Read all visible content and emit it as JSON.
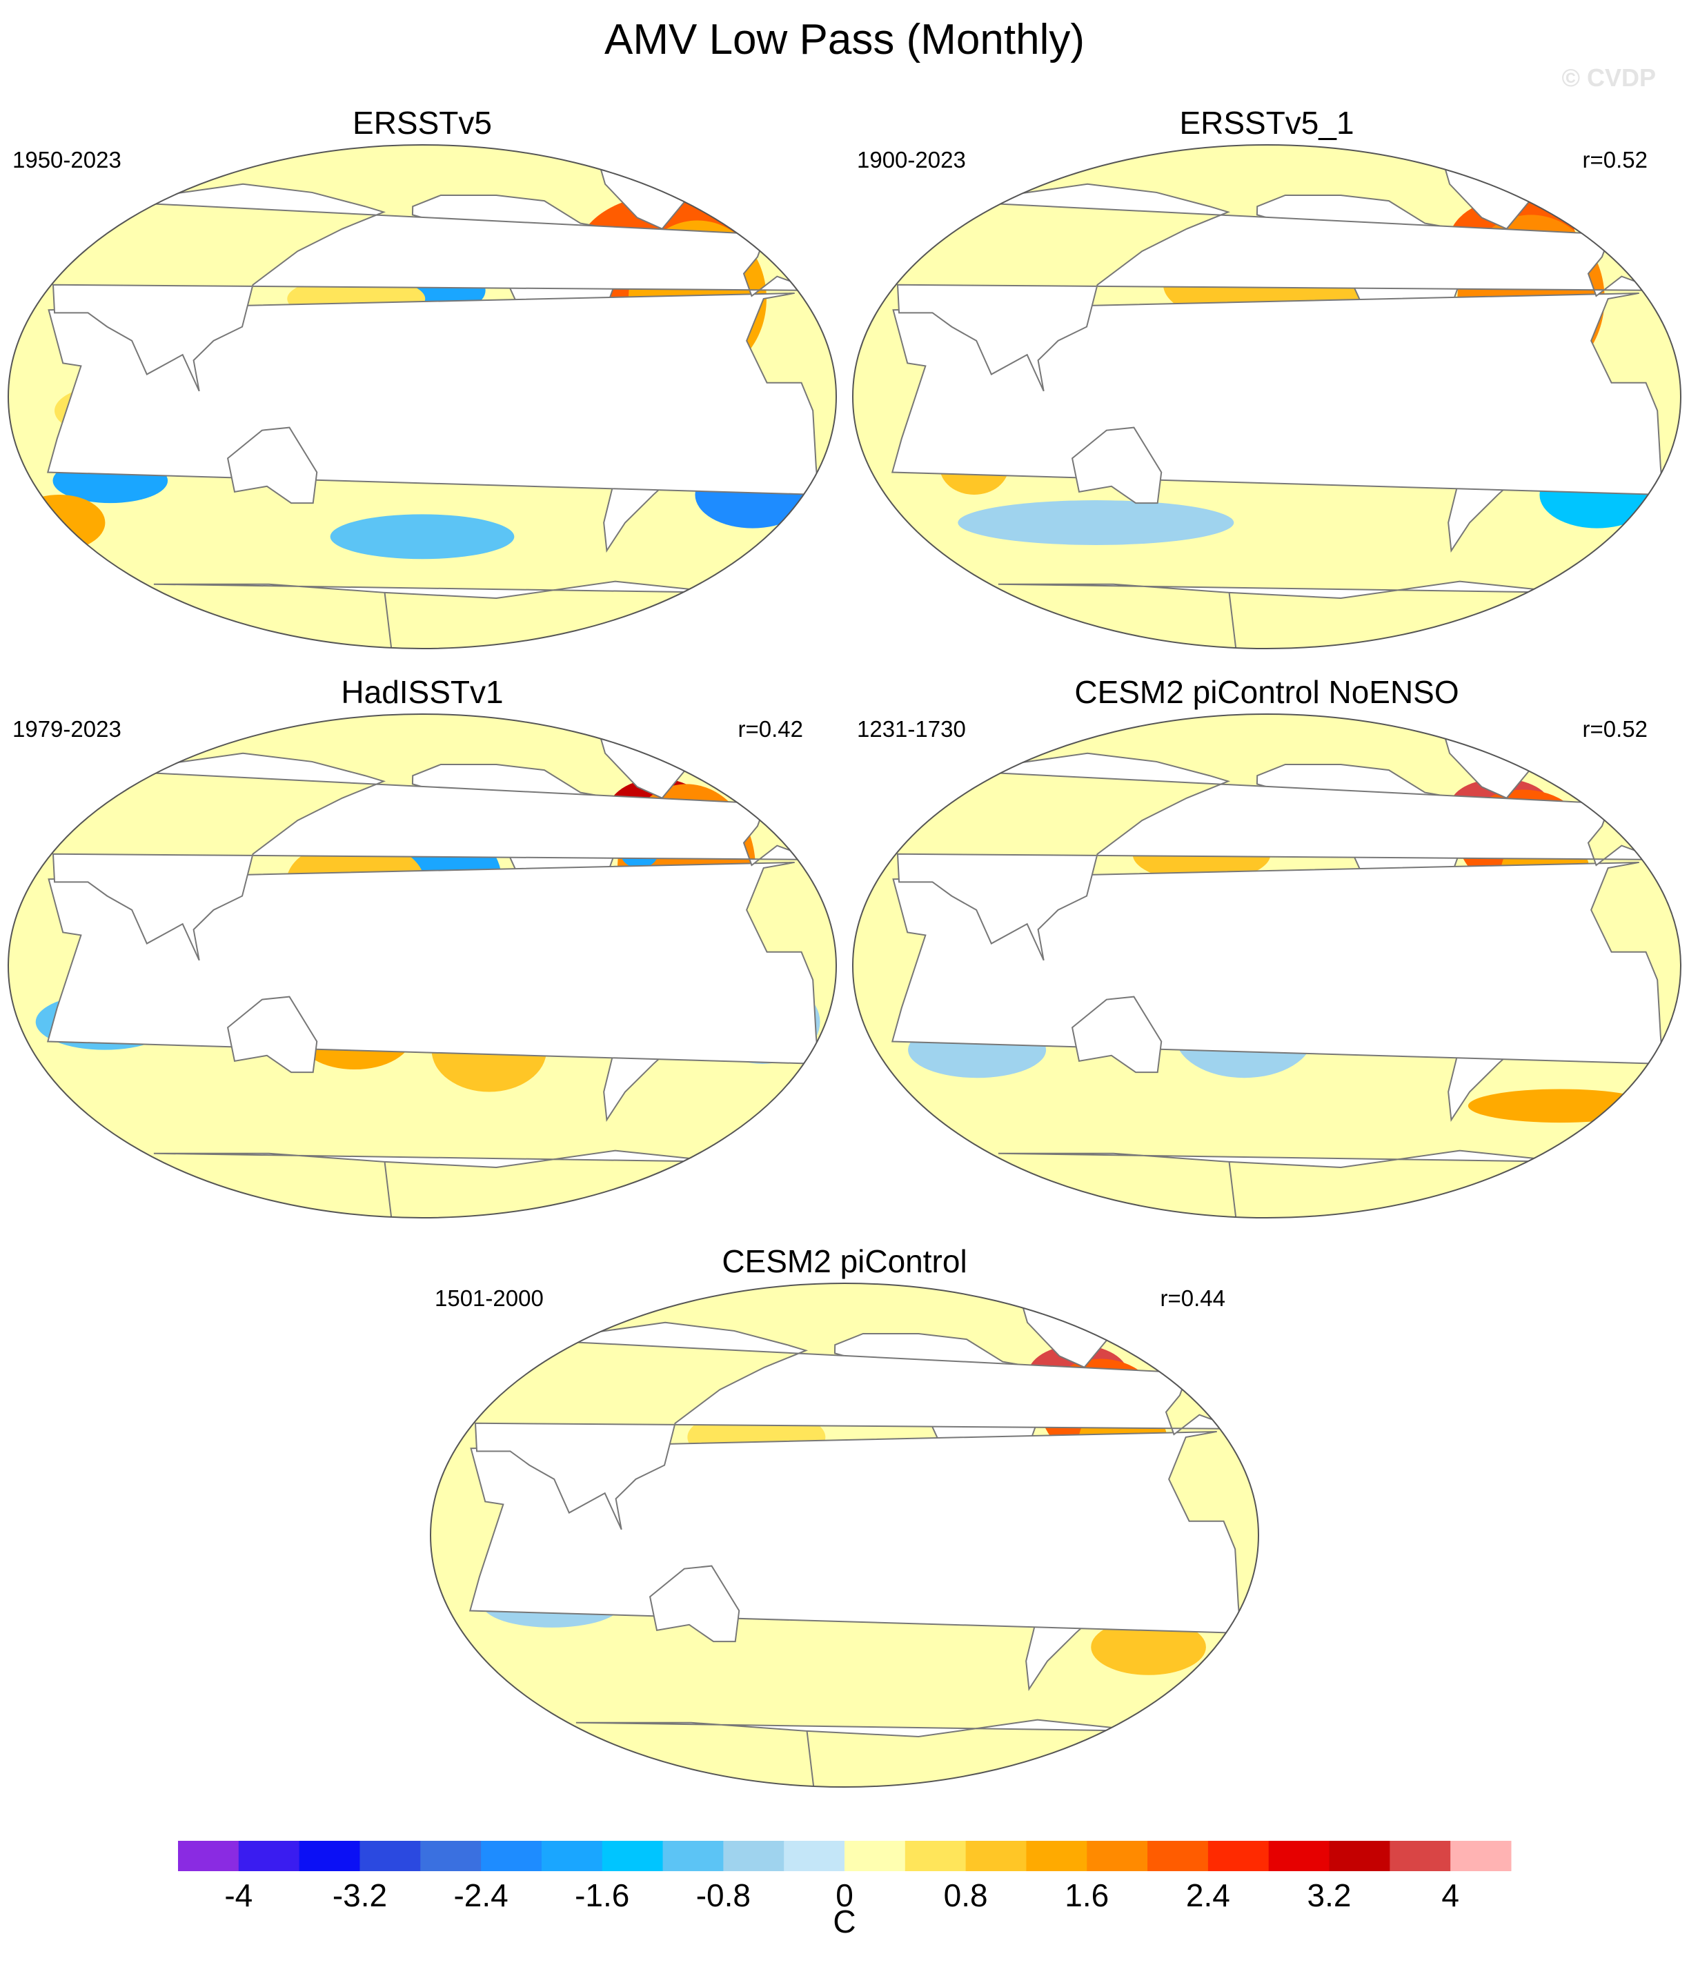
{
  "title": "AMV Low Pass (Monthly)",
  "watermark": "© CVDP",
  "units": "C",
  "colorbar": {
    "levels": [
      -4.4,
      -4,
      -3.6,
      -3.2,
      -2.8,
      -2.4,
      -2,
      -1.6,
      -1.2,
      -0.8,
      -0.4,
      0,
      0.4,
      0.8,
      1.2,
      1.6,
      2,
      2.4,
      2.8,
      3.2,
      3.6,
      4,
      4.4
    ],
    "colors": [
      "#8a2be2",
      "#3a1cf0",
      "#0b10f5",
      "#2b49e0",
      "#3a70e0",
      "#1e8cff",
      "#1aa6ff",
      "#00c5ff",
      "#5cc4f5",
      "#9fd3ee",
      "#c4e6f8",
      "#ffffb0",
      "#ffe55a",
      "#ffc626",
      "#ffaa00",
      "#ff8a00",
      "#ff5c00",
      "#ff2a00",
      "#e60000",
      "#c40000",
      "#d94545",
      "#ffb3b3"
    ],
    "tick_labels": [
      "-4",
      "-3.2",
      "-2.4",
      "-1.6",
      "-0.8",
      "0",
      "0.8",
      "1.6",
      "2.4",
      "3.2",
      "4"
    ]
  },
  "panels": [
    {
      "title": "ERSSTv5",
      "period": "1950-2023",
      "corr": "",
      "anomalies": [
        {
          "lon": -40,
          "lat": 55,
          "rx": 28,
          "ry": 15,
          "value": 3.2
        },
        {
          "lon": -45,
          "lat": 50,
          "rx": 38,
          "ry": 22,
          "value": 2.2
        },
        {
          "lon": -35,
          "lat": 35,
          "rx": 30,
          "ry": 28,
          "value": 1.4
        },
        {
          "lon": -170,
          "lat": 40,
          "rx": 35,
          "ry": 12,
          "value": -1.2
        },
        {
          "lon": -150,
          "lat": 38,
          "rx": 18,
          "ry": 8,
          "value": -2.0
        },
        {
          "lon": 170,
          "lat": 35,
          "rx": 30,
          "ry": 8,
          "value": 0.6
        },
        {
          "lon": -130,
          "lat": 0,
          "rx": 40,
          "ry": 8,
          "value": 1.2
        },
        {
          "lon": -115,
          "lat": 2,
          "rx": 15,
          "ry": 5,
          "value": 1.8
        },
        {
          "lon": 70,
          "lat": -5,
          "rx": 30,
          "ry": 10,
          "value": 0.6
        },
        {
          "lon": 60,
          "lat": -30,
          "rx": 25,
          "ry": 8,
          "value": -1.8
        },
        {
          "lon": 30,
          "lat": -45,
          "rx": 20,
          "ry": 10,
          "value": 1.2
        },
        {
          "lon": -10,
          "lat": -35,
          "rx": 25,
          "ry": 12,
          "value": -2.4
        },
        {
          "lon": -20,
          "lat": -10,
          "rx": 25,
          "ry": 8,
          "value": -1.2
        },
        {
          "lon": -160,
          "lat": -50,
          "rx": 40,
          "ry": 8,
          "value": -1.2
        }
      ]
    },
    {
      "title": "ERSSTv5_1",
      "period": "1900-2023",
      "corr": "r=0.52",
      "anomalies": [
        {
          "lon": -40,
          "lat": 55,
          "rx": 28,
          "ry": 16,
          "value": 2.2
        },
        {
          "lon": -40,
          "lat": 35,
          "rx": 32,
          "ry": 30,
          "value": 1.6
        },
        {
          "lon": -160,
          "lat": 40,
          "rx": 45,
          "ry": 15,
          "value": 1.0
        },
        {
          "lon": -150,
          "lat": 5,
          "rx": 40,
          "ry": 6,
          "value": -0.6
        },
        {
          "lon": -10,
          "lat": -35,
          "rx": 25,
          "ry": 12,
          "value": -1.4
        },
        {
          "lon": 120,
          "lat": -45,
          "rx": 60,
          "ry": 8,
          "value": -0.6
        },
        {
          "lon": 70,
          "lat": -25,
          "rx": 15,
          "ry": 10,
          "value": 0.8
        }
      ]
    },
    {
      "title": "HadISSTv1",
      "period": "1979-2023",
      "corr": "r=0.42",
      "anomalies": [
        {
          "lon": -45,
          "lat": 55,
          "rx": 22,
          "ry": 12,
          "value": 3.2
        },
        {
          "lon": -40,
          "lat": 35,
          "rx": 30,
          "ry": 30,
          "value": 1.8
        },
        {
          "lon": -60,
          "lat": 40,
          "rx": 8,
          "ry": 5,
          "value": -1.8
        },
        {
          "lon": -150,
          "lat": 30,
          "rx": 25,
          "ry": 20,
          "value": -2.0
        },
        {
          "lon": -130,
          "lat": 10,
          "rx": 35,
          "ry": 10,
          "value": -1.6
        },
        {
          "lon": 170,
          "lat": 30,
          "rx": 30,
          "ry": 15,
          "value": 1.0
        },
        {
          "lon": 170,
          "lat": -25,
          "rx": 25,
          "ry": 12,
          "value": 1.4
        },
        {
          "lon": -130,
          "lat": -30,
          "rx": 25,
          "ry": 15,
          "value": 1.0
        },
        {
          "lon": 60,
          "lat": -20,
          "rx": 30,
          "ry": 10,
          "value": -1.0
        },
        {
          "lon": -10,
          "lat": -20,
          "rx": 25,
          "ry": 15,
          "value": -0.8
        }
      ]
    },
    {
      "title": "CESM2 piControl NoENSO",
      "period": "1231-1730",
      "corr": "r=0.52",
      "anomalies": [
        {
          "lon": -45,
          "lat": 57,
          "rx": 22,
          "ry": 10,
          "value": 3.6
        },
        {
          "lon": -40,
          "lat": 45,
          "rx": 28,
          "ry": 18,
          "value": 2.2
        },
        {
          "lon": -35,
          "lat": 30,
          "rx": 20,
          "ry": 20,
          "value": 1.2
        },
        {
          "lon": 170,
          "lat": 40,
          "rx": 30,
          "ry": 10,
          "value": 1.0
        },
        {
          "lon": -170,
          "lat": -25,
          "rx": 30,
          "ry": 15,
          "value": -0.6
        },
        {
          "lon": 70,
          "lat": -30,
          "rx": 30,
          "ry": 10,
          "value": -0.6
        },
        {
          "lon": -20,
          "lat": -50,
          "rx": 40,
          "ry": 6,
          "value": 1.2
        },
        {
          "lon": -130,
          "lat": 0,
          "rx": 40,
          "ry": 6,
          "value": 0.6
        }
      ]
    },
    {
      "title": "CESM2 piControl",
      "period": "1501-2000",
      "corr": "r=0.44",
      "anomalies": [
        {
          "lon": -45,
          "lat": 57,
          "rx": 22,
          "ry": 11,
          "value": 3.6
        },
        {
          "lon": -40,
          "lat": 45,
          "rx": 26,
          "ry": 18,
          "value": 2.2
        },
        {
          "lon": -35,
          "lat": 30,
          "rx": 20,
          "ry": 20,
          "value": 1.2
        },
        {
          "lon": 160,
          "lat": 35,
          "rx": 30,
          "ry": 10,
          "value": 0.6
        },
        {
          "lon": -160,
          "lat": 5,
          "rx": 50,
          "ry": 5,
          "value": -0.6
        },
        {
          "lon": 70,
          "lat": -25,
          "rx": 30,
          "ry": 8,
          "value": -0.6
        },
        {
          "lon": -20,
          "lat": -40,
          "rx": 25,
          "ry": 10,
          "value": 0.8
        }
      ]
    }
  ]
}
